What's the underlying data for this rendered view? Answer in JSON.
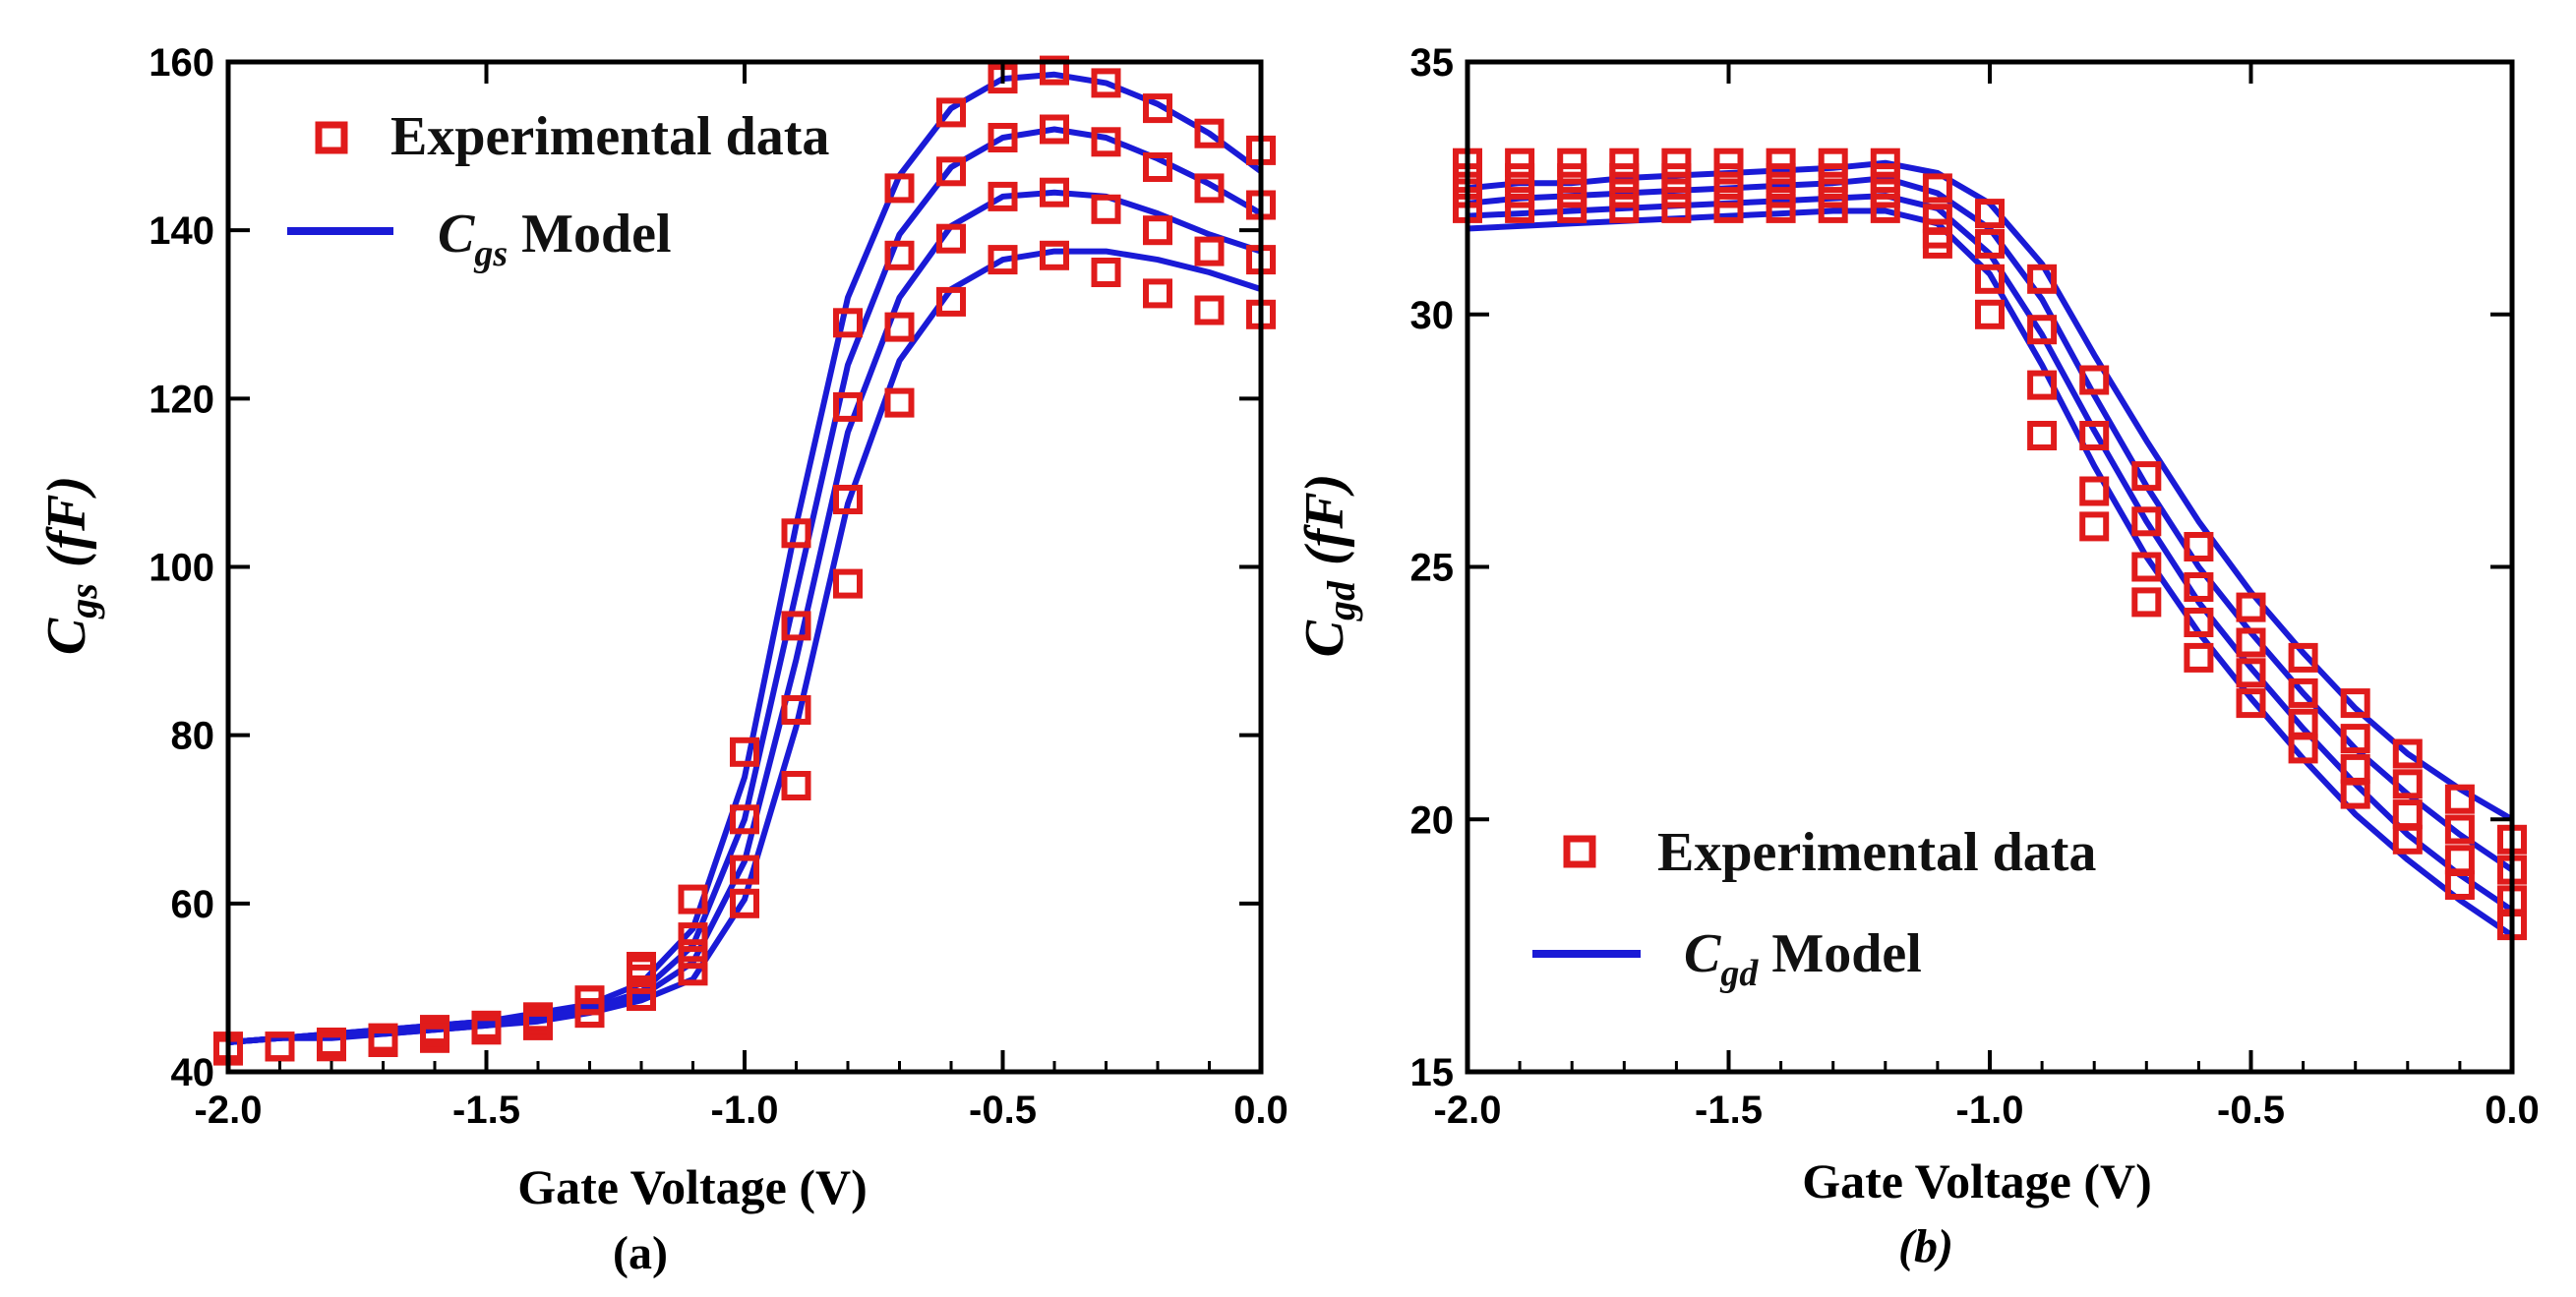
{
  "chart_data": [
    {
      "id": "a",
      "type": "scatter",
      "panel_label": "(a)",
      "xlabel": "Gate Voltage (V)",
      "ylabel": {
        "main": "C",
        "sub": "gs",
        "unit": "(fF)"
      },
      "xlim": [
        -2.0,
        0.0
      ],
      "ylim": [
        40,
        160
      ],
      "xticks": [
        -2.0,
        -1.5,
        -1.0,
        -0.5,
        0.0
      ],
      "xtick_labels": [
        "-2.0",
        "-1.5",
        "-1.0",
        "-0.5",
        "0.0"
      ],
      "yticks": [
        40,
        60,
        80,
        100,
        120,
        140,
        160
      ],
      "ytick_labels": [
        "40",
        "60",
        "80",
        "100",
        "120",
        "140",
        "160"
      ],
      "legend": {
        "position": "top-left",
        "markers_label": "Experimental data",
        "line_label": {
          "main": "C",
          "sub": "gs",
          "suffix": " Model"
        }
      },
      "x": [
        -2.0,
        -1.9,
        -1.8,
        -1.7,
        -1.6,
        -1.5,
        -1.4,
        -1.3,
        -1.2,
        -1.1,
        -1.0,
        -0.9,
        -0.8,
        -0.7,
        -0.6,
        -0.5,
        -0.4,
        -0.3,
        -0.2,
        -0.1,
        0.0
      ],
      "experimental": [
        {
          "name": "Experimental data 1",
          "values": [
            43,
            43,
            43.5,
            44,
            45,
            45.5,
            46.5,
            48.5,
            52.5,
            60.5,
            78,
            104,
            129,
            145,
            154,
            158,
            159,
            157.5,
            154.5,
            151.5,
            149.5
          ]
        },
        {
          "name": "Experimental data 2",
          "values": [
            43,
            43,
            43.5,
            44,
            45,
            45.5,
            46.5,
            48.5,
            52,
            56,
            70,
            93,
            119,
            137,
            147,
            151,
            152,
            150.5,
            147.5,
            145,
            143
          ]
        },
        {
          "name": "Experimental data 3",
          "values": [
            43,
            43,
            43.5,
            44,
            44.5,
            45,
            46,
            47,
            51,
            54,
            64,
            83,
            108,
            128.5,
            139,
            144,
            144.5,
            142.5,
            140,
            137.5,
            136.5
          ]
        },
        {
          "name": "Experimental data 4",
          "values": [
            42.5,
            43,
            43,
            43.5,
            44,
            45,
            45.5,
            47,
            49,
            52,
            60,
            74,
            98,
            119.5,
            131.5,
            136.5,
            137,
            135,
            132.5,
            130.5,
            130
          ]
        }
      ],
      "model": [
        {
          "name": "Cgs Model 1",
          "values": [
            43.5,
            44,
            44.5,
            45,
            45.5,
            46,
            47,
            48,
            50.5,
            57,
            75,
            105,
            132,
            146.5,
            154.5,
            158,
            158.5,
            157.5,
            155,
            151.5,
            147
          ]
        },
        {
          "name": "Cgs Model 2",
          "values": [
            43.5,
            44,
            44.5,
            45,
            45.5,
            46,
            46.5,
            47.5,
            49.5,
            55,
            70,
            97,
            124,
            139.5,
            147.5,
            151,
            152,
            151,
            148.5,
            145.5,
            142
          ]
        },
        {
          "name": "Cgs Model 3",
          "values": [
            43.5,
            44,
            44.5,
            44.5,
            45,
            45.5,
            46.5,
            47.5,
            49,
            53,
            65,
            89,
            116,
            132,
            140.5,
            144,
            144.5,
            144,
            142,
            139.5,
            137.5
          ]
        },
        {
          "name": "Cgs Model 4",
          "values": [
            43.5,
            44,
            44,
            44.5,
            45,
            45.5,
            46,
            47,
            48.5,
            51,
            60.5,
            81,
            107.5,
            124.5,
            133,
            136.5,
            137.5,
            137.5,
            136.5,
            135,
            133
          ]
        }
      ]
    },
    {
      "id": "b",
      "type": "scatter",
      "panel_label": "(b)",
      "xlabel": "Gate Voltage (V)",
      "ylabel": {
        "main": "C",
        "sub": "gd",
        "unit": "(fF)"
      },
      "xlim": [
        -2.0,
        0.0
      ],
      "ylim": [
        15,
        35
      ],
      "xticks": [
        -2.0,
        -1.5,
        -1.0,
        -0.5,
        0.0
      ],
      "xtick_labels": [
        "-2.0",
        "-1.5",
        "-1.0",
        "-0.5",
        "0.0"
      ],
      "yticks": [
        15,
        20,
        25,
        30,
        35
      ],
      "ytick_labels": [
        "15",
        "20",
        "25",
        "30",
        "35"
      ],
      "legend": {
        "position": "bottom-left",
        "markers_label": "Experimental data",
        "line_label": {
          "main": "C",
          "sub": "gd",
          "suffix": " Model"
        }
      },
      "x": [
        -2.0,
        -1.9,
        -1.8,
        -1.7,
        -1.6,
        -1.5,
        -1.4,
        -1.3,
        -1.2,
        -1.1,
        -1.0,
        -0.9,
        -0.8,
        -0.7,
        -0.6,
        -0.5,
        -0.4,
        -0.3,
        -0.2,
        -0.1,
        0.0
      ],
      "experimental": [
        {
          "name": "Experimental data 1",
          "values": [
            33,
            33,
            33,
            33,
            33,
            33,
            33,
            33,
            33,
            32.5,
            32,
            30.7,
            28.7,
            26.8,
            25.4,
            24.2,
            23.2,
            22.3,
            21.3,
            20.4,
            19.6
          ]
        },
        {
          "name": "Experimental data 2",
          "values": [
            32.7,
            32.7,
            32.7,
            32.7,
            32.7,
            32.7,
            32.7,
            32.7,
            32.7,
            31.9,
            31.4,
            29.7,
            27.6,
            25.9,
            24.6,
            23.5,
            22.5,
            21.6,
            20.7,
            19.8,
            19
          ]
        },
        {
          "name": "Experimental data 3",
          "values": [
            32.4,
            32.4,
            32.4,
            32.4,
            32.4,
            32.4,
            32.4,
            32.4,
            32.4,
            31.6,
            30.7,
            28.6,
            26.5,
            25,
            23.9,
            22.9,
            21.9,
            21,
            20.1,
            19.2,
            18.4
          ]
        },
        {
          "name": "Experimental data 4",
          "values": [
            32.1,
            32.1,
            32.1,
            32.1,
            32.1,
            32.1,
            32.1,
            32.1,
            32.1,
            31.4,
            30,
            27.6,
            25.8,
            24.3,
            23.2,
            22.3,
            21.4,
            20.5,
            19.6,
            18.7,
            17.9
          ]
        }
      ],
      "model": [
        {
          "name": "Cgd Model 1",
          "values": [
            32.5,
            32.6,
            32.6,
            32.7,
            32.75,
            32.8,
            32.85,
            32.9,
            33,
            32.8,
            32.2,
            31,
            29.2,
            27.5,
            25.9,
            24.5,
            23.3,
            22.2,
            21.3,
            20.6,
            20
          ]
        },
        {
          "name": "Cgd Model 2",
          "values": [
            32.2,
            32.3,
            32.35,
            32.4,
            32.45,
            32.5,
            32.55,
            32.6,
            32.7,
            32.4,
            31.7,
            30.3,
            28.4,
            26.6,
            25,
            23.7,
            22.5,
            21.4,
            20.5,
            19.7,
            19
          ]
        },
        {
          "name": "Cgd Model 3",
          "values": [
            31.95,
            32,
            32.05,
            32.1,
            32.15,
            32.2,
            32.25,
            32.3,
            32.35,
            32.1,
            31.2,
            29.6,
            27.7,
            25.9,
            24.3,
            23,
            21.8,
            20.7,
            19.7,
            18.9,
            18.2
          ]
        },
        {
          "name": "Cgd Model 4",
          "values": [
            31.7,
            31.75,
            31.8,
            31.85,
            31.9,
            31.95,
            32,
            32.05,
            32.05,
            31.8,
            30.8,
            29,
            27,
            25.2,
            23.7,
            22.4,
            21.2,
            20.1,
            19.2,
            18.4,
            17.7
          ]
        }
      ]
    }
  ],
  "colors": {
    "marker": "#e01b1b",
    "line": "#1a1ad6",
    "axis": "#000000"
  }
}
